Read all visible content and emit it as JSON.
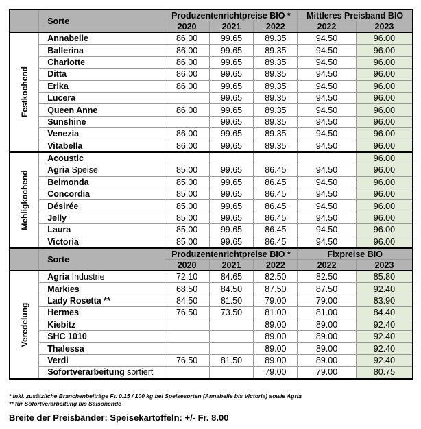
{
  "header1": {
    "sorte": "Sorte",
    "group_a": "Produzentenrichtpreise BIO *",
    "group_b": "Mittleres Preisband BIO",
    "years": [
      "2020",
      "2021",
      "2022",
      "2022",
      "2023"
    ]
  },
  "header2": {
    "sorte": "Sorte",
    "group_a": "Produzentenrichtpreise BIO *",
    "group_b": "Fixpreise BIO",
    "years": [
      "2020",
      "2021",
      "2022",
      "2022",
      "2023"
    ]
  },
  "sections": [
    {
      "label": "Festkochend",
      "rows": [
        {
          "name": "Annabelle",
          "suffix": "",
          "values": [
            "86.00",
            "99.65",
            "89.35",
            "94.50",
            "96.00"
          ]
        },
        {
          "name": "Ballerina",
          "suffix": "",
          "values": [
            "86.00",
            "99.65",
            "89.35",
            "94.50",
            "96.00"
          ]
        },
        {
          "name": "Charlotte",
          "suffix": "",
          "values": [
            "86.00",
            "99.65",
            "89.35",
            "94.50",
            "96.00"
          ]
        },
        {
          "name": "Ditta",
          "suffix": "",
          "values": [
            "86.00",
            "99.65",
            "89.35",
            "94.50",
            "96.00"
          ]
        },
        {
          "name": "Erika",
          "suffix": "",
          "values": [
            "86.00",
            "99.65",
            "89.35",
            "94.50",
            "96.00"
          ]
        },
        {
          "name": "Lucera",
          "suffix": "",
          "values": [
            "",
            "99.65",
            "89.35",
            "94.50",
            "96.00"
          ]
        },
        {
          "name": "Queen Anne",
          "suffix": "",
          "values": [
            "86.00",
            "99.65",
            "89.35",
            "94.50",
            "96.00"
          ]
        },
        {
          "name": "Sunshine",
          "suffix": "",
          "values": [
            "",
            "99.65",
            "89.35",
            "94.50",
            "96.00"
          ]
        },
        {
          "name": "Venezia",
          "suffix": "",
          "values": [
            "86.00",
            "99.65",
            "89.35",
            "94.50",
            "96.00"
          ]
        },
        {
          "name": "Vitabella",
          "suffix": "",
          "values": [
            "86.00",
            "99.65",
            "89.35",
            "94.50",
            "96.00"
          ]
        }
      ]
    },
    {
      "label": "Mehligkochend",
      "rows": [
        {
          "name": "Acoustic",
          "suffix": "",
          "values": [
            "",
            "",
            "",
            "",
            "96.00"
          ]
        },
        {
          "name": "Agria",
          "suffix": " Speise",
          "values": [
            "85.00",
            "99.65",
            "86.45",
            "94.50",
            "96.00"
          ]
        },
        {
          "name": "Belmonda",
          "suffix": "",
          "values": [
            "85.00",
            "99.65",
            "86.45",
            "94.50",
            "96.00"
          ]
        },
        {
          "name": "Concordia",
          "suffix": "",
          "values": [
            "85.00",
            "99.65",
            "86.45",
            "94.50",
            "96.00"
          ]
        },
        {
          "name": "Désirée",
          "suffix": "",
          "values": [
            "85.00",
            "99.65",
            "86.45",
            "94.50",
            "96.00"
          ]
        },
        {
          "name": "Jelly",
          "suffix": "",
          "values": [
            "85.00",
            "99.65",
            "86.45",
            "94.50",
            "96.00"
          ]
        },
        {
          "name": "Laura",
          "suffix": "",
          "values": [
            "85.00",
            "99.65",
            "86.45",
            "94.50",
            "96.00"
          ]
        },
        {
          "name": "Victoria",
          "suffix": "",
          "values": [
            "85.00",
            "99.65",
            "86.45",
            "94.50",
            "96.00"
          ]
        }
      ]
    },
    {
      "label": "Veredelung",
      "rows": [
        {
          "name": "Agria",
          "suffix": " Industrie",
          "values": [
            "72.10",
            "84.65",
            "82.50",
            "82.50",
            "85.80"
          ]
        },
        {
          "name": "Markies",
          "suffix": "",
          "values": [
            "68.50",
            "84.50",
            "87.50",
            "87.50",
            "92.40"
          ]
        },
        {
          "name": "Lady Rosetta **",
          "suffix": "",
          "values": [
            "84.50",
            "81.50",
            "79.00",
            "79.00",
            "83.90"
          ]
        },
        {
          "name": "Hermes",
          "suffix": "",
          "values": [
            "76.50",
            "73.50",
            "81.00",
            "81.00",
            "84.40"
          ]
        },
        {
          "name": "Kiebitz",
          "suffix": "",
          "values": [
            "",
            "",
            "89.00",
            "89.00",
            "92.40"
          ]
        },
        {
          "name": "SHC 1010",
          "suffix": "",
          "values": [
            "",
            "",
            "89.00",
            "89.00",
            "92.40"
          ]
        },
        {
          "name": "Thalessa",
          "suffix": "",
          "values": [
            "",
            "",
            "89.00",
            "89.00",
            "92.40"
          ]
        },
        {
          "name": "Verdi",
          "suffix": "",
          "values": [
            "76.50",
            "81.50",
            "89.00",
            "89.00",
            "92.40"
          ]
        },
        {
          "name": "Sofortverarbeitung",
          "suffix": " sortiert",
          "values": [
            "",
            "",
            "79.00",
            "79.00",
            "80.75"
          ]
        }
      ]
    }
  ],
  "footnotes": [
    "* inkl. zusätzliche Branchenbeiträge Fr. 0.15 / 100 kg bei Speisesorten (Annabelle bis Victoria) sowie Agria",
    "** für Sofortverarbeitung bis Saisonende"
  ],
  "bottom_note": "Breite der Preisbänder: Speisekartoffeln: +/- Fr. 8.00",
  "colors": {
    "header_bg": "#b3b3b3",
    "highlight_2023": "#e3ecd9"
  }
}
